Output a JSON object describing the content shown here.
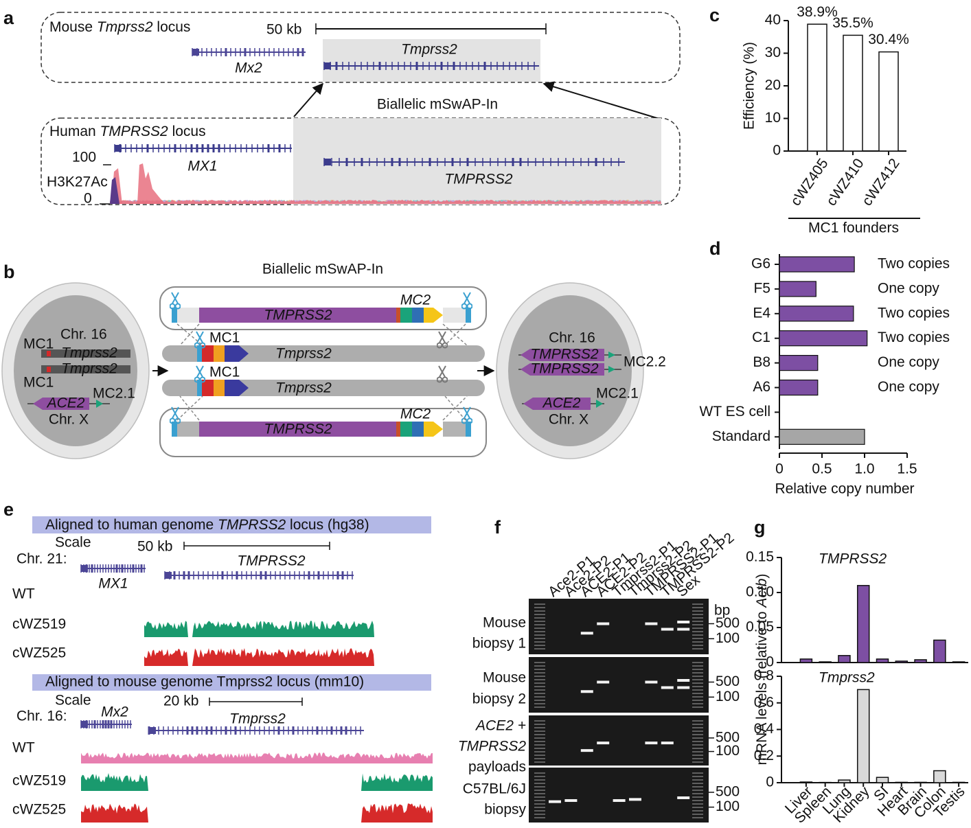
{
  "panel_labels": [
    "a",
    "b",
    "c",
    "d",
    "e",
    "f",
    "g"
  ],
  "panel_a": {
    "mouse_locus": [
      "Mouse",
      "Tmprss2",
      "locus"
    ],
    "scale": "50 kb",
    "mouse_genes": [
      "Mx2",
      "Tmprss2"
    ],
    "method": "Biallelic mSwAP-In",
    "human_locus": [
      "Human",
      "TMPRSS2",
      "locus"
    ],
    "human_genes": [
      "MX1",
      "TMPRSS2"
    ],
    "track": "H3K27Ac",
    "track_max": 100,
    "track_min": 0
  },
  "panel_b": {
    "title": "Biallelic mSwAP-In",
    "left_cell": {
      "chr16": "Chr. 16",
      "mc1": "MC1",
      "gene": "Tmprss2",
      "ace2": "ACE2",
      "mc21": "MC2.1",
      "chrx": "Chr. X"
    },
    "payload": {
      "gene": "TMPRSS2",
      "marker": "MC2"
    },
    "genome": {
      "marker": "MC1",
      "gene": "Tmprss2"
    },
    "right_cell": {
      "chr16": "Chr. 16",
      "gene": "TMPRSS2",
      "mc22": "MC2.2",
      "ace2": "ACE2",
      "mc21": "MC2.1",
      "chrx": "Chr. X"
    }
  },
  "panel_e": {
    "human_header": [
      "Aligned to human genome",
      "TMPRSS2",
      "locus (hg38)"
    ],
    "human_scale": [
      "Scale",
      "Chr. 21:"
    ],
    "human_scale_bar": "50 kb",
    "human_genes": [
      "MX1",
      "TMPRSS2"
    ],
    "samples": [
      "WT",
      "cWZ519",
      "cWZ525"
    ],
    "mouse_header": "Aligned to mouse genome Tmprss2 locus (mm10)",
    "mouse_scale": [
      "Scale",
      "Chr. 16:"
    ],
    "mouse_scale_bar": "20 kb",
    "mouse_genes": [
      "Mx2",
      "Tmprss2"
    ]
  },
  "panel_f": {
    "lanes": [
      "Ace2-P1",
      "Ace2-P2",
      "ACE2-P1",
      "ACE2-P2",
      "Tmprss2-P1",
      "Tmprss2-P2",
      "TMPRSS2-P1",
      "TMPRSS2-P2",
      "Sex"
    ],
    "unit": "bp",
    "sizes": [
      500,
      100
    ],
    "rows": [
      [
        "Mouse",
        "biopsy 1"
      ],
      [
        "Mouse",
        "biopsy 2"
      ],
      [
        "ACE2 +",
        "TMPRSS2",
        "payloads"
      ],
      [
        "C57BL/6J",
        "biopsy"
      ]
    ]
  },
  "chart_data": [
    {
      "type": "bar",
      "ylabel": "Efficiency (%)",
      "xlabel": "MC1 founders",
      "categories": [
        "cWZ405",
        "cWZ410",
        "cWZ412"
      ],
      "values": [
        38.9,
        35.5,
        30.4
      ],
      "value_labels": [
        "38.9%",
        "35.5%",
        "30.4%"
      ],
      "color": "#ffffff",
      "ylim": [
        0,
        40
      ],
      "yticks": [
        0,
        10,
        20,
        30,
        40
      ]
    },
    {
      "type": "barh",
      "xlabel": "Relative copy number",
      "categories": [
        "G6",
        "F5",
        "E4",
        "C1",
        "B8",
        "A6",
        "WT ES cell",
        "Standard"
      ],
      "values": [
        0.88,
        0.43,
        0.87,
        1.03,
        0.45,
        0.45,
        0,
        1.0
      ],
      "annotations": [
        "Two copies",
        "One copy",
        "Two copies",
        "Two copies",
        "One copy",
        "One copy",
        null,
        null
      ],
      "colors": [
        "#7d4fa3",
        "#7d4fa3",
        "#7d4fa3",
        "#7d4fa3",
        "#7d4fa3",
        "#7d4fa3",
        "#ffffff",
        "#a6a6a6"
      ],
      "xlim": [
        0,
        1.5
      ],
      "xticks": [
        0,
        0.5,
        {
          "value": 1,
          "label": "1.0"
        },
        1.5
      ]
    },
    {
      "type": "bar",
      "title": "TMPRSS2",
      "ylabel": [
        "mRNA levels (relative to",
        "Actb",
        ")"
      ],
      "values": [
        0.005,
        0.001,
        0.01,
        0.11,
        0.005,
        0.002,
        0.004,
        0.032,
        0.001
      ],
      "color": "#7d4fa3",
      "ylim": [
        0,
        0.15
      ],
      "yticks": [
        0,
        0.05,
        {
          "value": 0.1,
          "label": "0.10"
        },
        0.15
      ]
    },
    {
      "type": "bar",
      "title": "Tmprss2",
      "categories": [
        "Liver",
        "Spleen",
        "Lung",
        "Kidney",
        "SI",
        "Heart",
        "Brain",
        "Colon",
        "Testis"
      ],
      "values": [
        0.005,
        0.002,
        0.02,
        0.7,
        0.04,
        0.003,
        0.003,
        0.09,
        0.003
      ],
      "color": "#d9d9d9",
      "ylim": [
        0,
        0.8
      ],
      "yticks": [
        0,
        0.2,
        0.4,
        0.6,
        0.8
      ]
    }
  ]
}
